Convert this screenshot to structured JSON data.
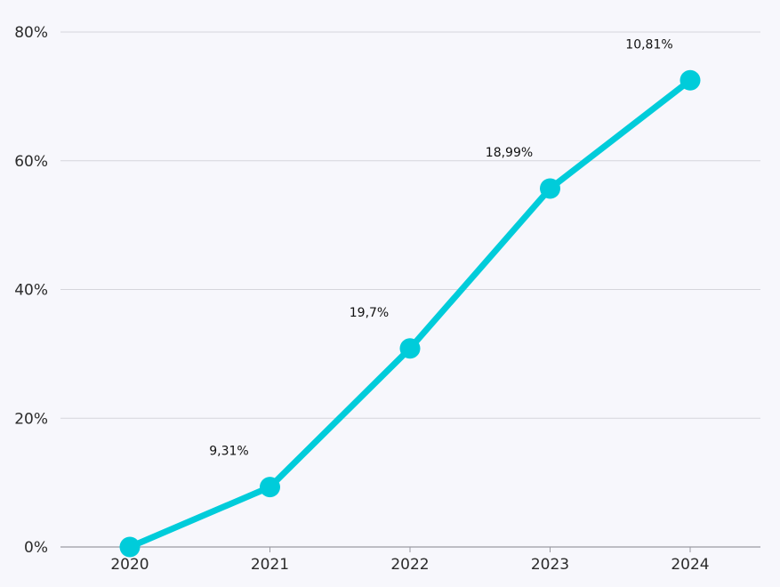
{
  "chart_data": {
    "type": "line",
    "x": [
      "2020",
      "2021",
      "2022",
      "2023",
      "2024"
    ],
    "series": [
      {
        "values": [
          0,
          9.31,
          30.84,
          55.69,
          72.5
        ],
        "labels": [
          "",
          "9,31%",
          "19,7%",
          "18,99%",
          "10,81%"
        ],
        "color": "#00ccda"
      }
    ],
    "ylim": [
      0,
      80
    ],
    "yticks": [
      0,
      20,
      40,
      60,
      80
    ],
    "ytick_labels": [
      "0%",
      "20%",
      "40%",
      "60%",
      "80%"
    ],
    "grid": true,
    "title": "",
    "xlabel": "",
    "ylabel": ""
  },
  "colors": {
    "background": "#f7f7fc",
    "grid": "#d6d6dc",
    "axis": "#9a9aa2",
    "line": "#00ccda"
  }
}
